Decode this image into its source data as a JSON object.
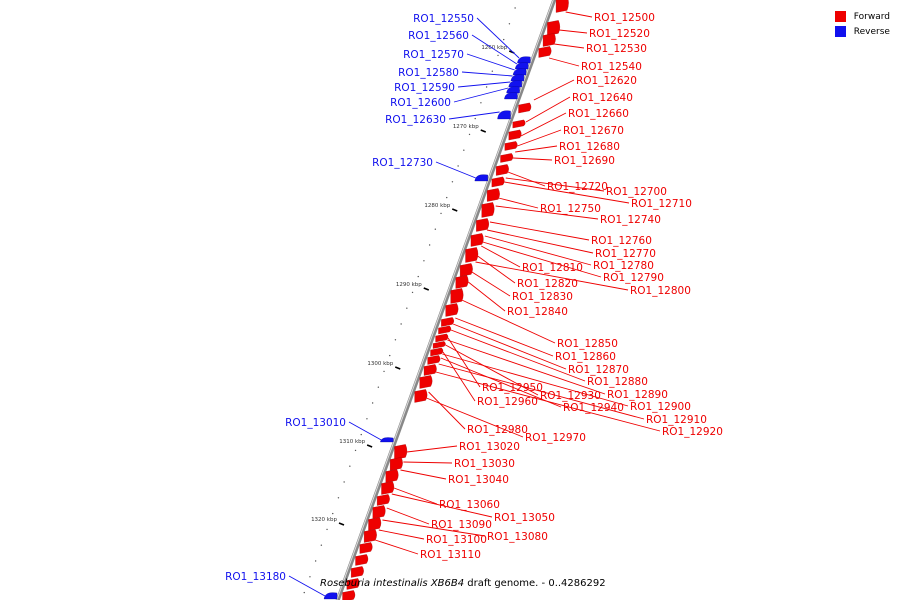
{
  "legend": {
    "forward_label": "Forward",
    "reverse_label": "Reverse",
    "forward_color": "#ee0000",
    "reverse_color": "#1111ee"
  },
  "caption": {
    "organism": "Roseburia intestinalis XB6B4",
    "rest": " draft genome. - 0..4286292"
  },
  "ticks": [
    "1260 kbp",
    "1270 kbp",
    "1280 kbp",
    "1290 kbp",
    "1300 kbp",
    "1310 kbp",
    "1320 kbp"
  ],
  "forward_genes": [
    "RO1_12500",
    "RO1_12520",
    "RO1_12530",
    "RO1_12540",
    "RO1_12620",
    "RO1_12640",
    "RO1_12660",
    "RO1_12670",
    "RO1_12680",
    "RO1_12690",
    "RO1_12720",
    "RO1_12700",
    "RO1_12710",
    "RO1_12750",
    "RO1_12740",
    "RO1_12760",
    "RO1_12770",
    "RO1_12780",
    "RO1_12810",
    "RO1_12790",
    "RO1_12820",
    "RO1_12800",
    "RO1_12830",
    "RO1_12840",
    "RO1_12850",
    "RO1_12860",
    "RO1_12870",
    "RO1_12880",
    "RO1_12950",
    "RO1_12890",
    "RO1_12930",
    "RO1_12960",
    "RO1_12900",
    "RO1_12940",
    "RO1_12910",
    "RO1_12920",
    "RO1_12980",
    "RO1_12970",
    "RO1_13020",
    "RO1_13030",
    "RO1_13040",
    "RO1_13060",
    "RO1_13050",
    "RO1_13090",
    "RO1_13080",
    "RO1_13100",
    "RO1_13110"
  ],
  "reverse_genes": [
    "RO1_12550",
    "RO1_12560",
    "RO1_12570",
    "RO1_12580",
    "RO1_12590",
    "RO1_12600",
    "RO1_12630",
    "RO1_12730",
    "RO1_13010",
    "RO1_13180"
  ]
}
